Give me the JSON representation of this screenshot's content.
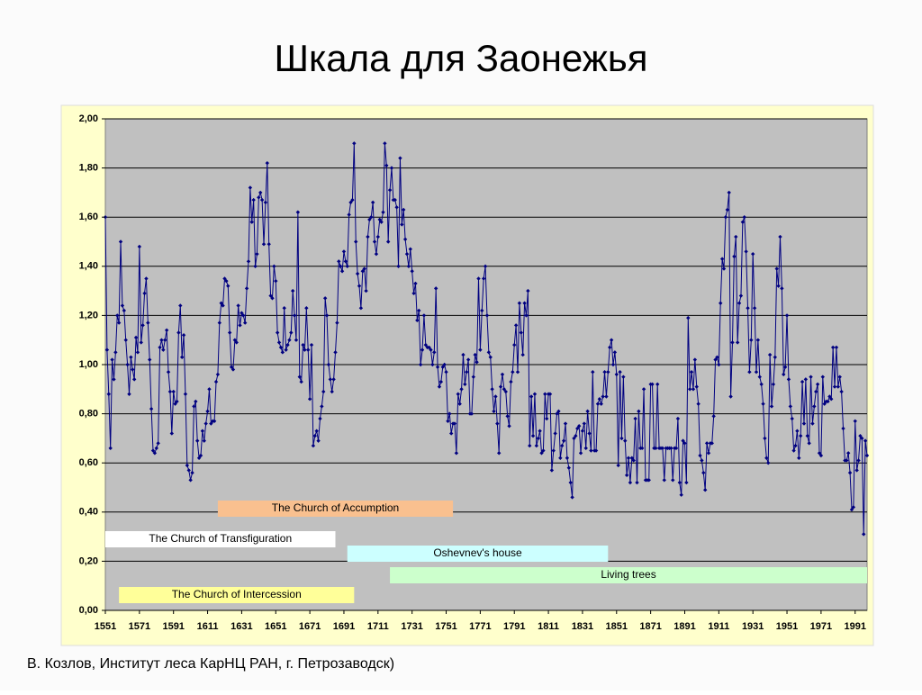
{
  "page_title": "Шкала для Заонежья",
  "footer": "В. Козлов, Институт леса КарНЦ РАН, г. Петрозаводск)",
  "chart_data": {
    "type": "line",
    "color": "#000080",
    "grid": true,
    "xlim": [
      1551,
      1998
    ],
    "ylim": [
      0,
      2
    ],
    "xticks": [
      1551,
      1571,
      1591,
      1611,
      1631,
      1651,
      1671,
      1691,
      1711,
      1731,
      1751,
      1771,
      1791,
      1811,
      1831,
      1851,
      1871,
      1891,
      1911,
      1931,
      1951,
      1971,
      1991
    ],
    "yticks": [
      {
        "value": 0,
        "label": "0,00"
      },
      {
        "value": 0.2,
        "label": "0,20"
      },
      {
        "value": 0.4,
        "label": "0,40"
      },
      {
        "value": 0.6,
        "label": "0,60"
      },
      {
        "value": 0.8,
        "label": "0,80"
      },
      {
        "value": 1,
        "label": "1,00"
      },
      {
        "value": 1.2,
        "label": "1,20"
      },
      {
        "value": 1.4,
        "label": "1,40"
      },
      {
        "value": 1.6,
        "label": "1,60"
      },
      {
        "value": 1.8,
        "label": "1,80"
      },
      {
        "value": 2,
        "label": "2,00"
      }
    ],
    "periods": [
      {
        "label": "The Church of Accumption",
        "start": 1617,
        "end": 1755,
        "color": "#f9c08f"
      },
      {
        "label": "The Church of Transfiguration",
        "start": 1551,
        "end": 1686,
        "color": "#ffffff"
      },
      {
        "label": "Oshevnev's house",
        "start": 1693,
        "end": 1846,
        "color": "#ccffff"
      },
      {
        "label": "Living trees",
        "start": 1718,
        "end": 1998,
        "color": "#ccffcc"
      },
      {
        "label": "The Church of Intercession",
        "start": 1559,
        "end": 1697,
        "color": "#ffff99"
      }
    ],
    "x": [
      1551,
      1552,
      1553,
      1554,
      1555,
      1556,
      1557,
      1558,
      1559,
      1560,
      1561,
      1562,
      1563,
      1564,
      1565,
      1566,
      1567,
      1568,
      1569,
      1570,
      1571,
      1572,
      1573,
      1574,
      1575,
      1576,
      1577,
      1578,
      1579,
      1580,
      1581,
      1582,
      1583,
      1584,
      1585,
      1586,
      1587,
      1588,
      1589,
      1590,
      1591,
      1592,
      1593,
      1594,
      1595,
      1596,
      1597,
      1598,
      1599,
      1600,
      1601,
      1602,
      1603,
      1604,
      1605,
      1606,
      1607,
      1608,
      1609,
      1610,
      1611,
      1612,
      1613,
      1614,
      1615,
      1616,
      1617,
      1618,
      1619,
      1620,
      1621,
      1622,
      1623,
      1624,
      1625,
      1626,
      1627,
      1628,
      1629,
      1630,
      1631,
      1632,
      1633,
      1634,
      1635,
      1636,
      1637,
      1638,
      1639,
      1640,
      1641,
      1642,
      1643,
      1644,
      1645,
      1646,
      1647,
      1648,
      1649,
      1650,
      1651,
      1652,
      1653,
      1654,
      1655,
      1656,
      1657,
      1658,
      1659,
      1660,
      1661,
      1662,
      1663,
      1664,
      1665,
      1666,
      1667,
      1668,
      1669,
      1670,
      1671,
      1672,
      1673,
      1674,
      1675,
      1676,
      1677,
      1678,
      1679,
      1680,
      1681,
      1682,
      1683,
      1684,
      1685,
      1686,
      1687,
      1688,
      1689,
      1690,
      1691,
      1692,
      1693,
      1694,
      1695,
      1696,
      1697,
      1698,
      1699,
      1700,
      1701,
      1702,
      1703,
      1704,
      1705,
      1706,
      1707,
      1708,
      1709,
      1710,
      1711,
      1712,
      1713,
      1714,
      1715,
      1716,
      1717,
      1718,
      1719,
      1720,
      1721,
      1722,
      1723,
      1724,
      1725,
      1726,
      1727,
      1728,
      1729,
      1730,
      1731,
      1732,
      1733,
      1734,
      1735,
      1736,
      1737,
      1738,
      1739,
      1740,
      1741,
      1742,
      1743,
      1744,
      1745,
      1746,
      1747,
      1748,
      1749,
      1750,
      1751,
      1752,
      1753,
      1754,
      1755,
      1756,
      1757,
      1758,
      1759,
      1760,
      1761,
      1762,
      1763,
      1764,
      1765,
      1766,
      1767,
      1768,
      1769,
      1770,
      1771,
      1772,
      1773,
      1774,
      1775,
      1776,
      1777,
      1778,
      1779,
      1780,
      1781,
      1782,
      1783,
      1784,
      1785,
      1786,
      1787,
      1788,
      1789,
      1790,
      1791,
      1792,
      1793,
      1794,
      1795,
      1796,
      1797,
      1798,
      1799,
      1800,
      1801,
      1802,
      1803,
      1804,
      1805,
      1806,
      1807,
      1808,
      1809,
      1810,
      1811,
      1812,
      1813,
      1814,
      1815,
      1816,
      1817,
      1818,
      1819,
      1820,
      1821,
      1822,
      1823,
      1824,
      1825,
      1826,
      1827,
      1828,
      1829,
      1830,
      1831,
      1832,
      1833,
      1834,
      1835,
      1836,
      1837,
      1838,
      1839,
      1840,
      1841,
      1842,
      1843,
      1844,
      1845,
      1846,
      1847,
      1848,
      1849,
      1850,
      1851,
      1852,
      1853,
      1854,
      1855,
      1856,
      1857,
      1858,
      1859,
      1860,
      1861,
      1862,
      1863,
      1864,
      1865,
      1866,
      1867,
      1868,
      1869,
      1870,
      1871,
      1872,
      1873,
      1874,
      1875,
      1876,
      1877,
      1878,
      1879,
      1880,
      1881,
      1882,
      1883,
      1884,
      1885,
      1886,
      1887,
      1888,
      1889,
      1890,
      1891,
      1892,
      1893,
      1894,
      1895,
      1896,
      1897,
      1898,
      1899,
      1900,
      1901,
      1902,
      1903,
      1904,
      1905,
      1906,
      1907,
      1908,
      1909,
      1910,
      1911,
      1912,
      1913,
      1914,
      1915,
      1916,
      1917,
      1918,
      1919,
      1920,
      1921,
      1922,
      1923,
      1924,
      1925,
      1926,
      1927,
      1928,
      1929,
      1930,
      1931,
      1932,
      1933,
      1934,
      1935,
      1936,
      1937,
      1938,
      1939,
      1940,
      1941,
      1942,
      1943,
      1944,
      1945,
      1946,
      1947,
      1948,
      1949,
      1950,
      1951,
      1952,
      1953,
      1954,
      1955,
      1956,
      1957,
      1958,
      1959,
      1960,
      1961,
      1962,
      1963,
      1964,
      1965,
      1966,
      1967,
      1968,
      1969,
      1970,
      1971,
      1972,
      1973,
      1974,
      1975,
      1976,
      1977,
      1978,
      1979,
      1980,
      1981,
      1982,
      1983,
      1984,
      1985,
      1986,
      1987,
      1988,
      1989,
      1990,
      1991,
      1992,
      1993,
      1994,
      1995,
      1996,
      1997,
      1998
    ],
    "values": [
      1.6,
      1.06,
      0.88,
      0.66,
      1.02,
      0.94,
      1.05,
      1.2,
      1.17,
      1.5,
      1.24,
      1.22,
      1.1,
      1.0,
      0.88,
      1.03,
      0.98,
      0.94,
      1.11,
      1.05,
      1.48,
      1.09,
      1.16,
      1.29,
      1.35,
      1.17,
      1.02,
      0.82,
      0.65,
      0.64,
      0.66,
      0.68,
      1.07,
      1.1,
      1.06,
      1.1,
      1.14,
      0.97,
      0.89,
      0.72,
      0.89,
      0.84,
      0.85,
      1.13,
      1.24,
      1.03,
      1.12,
      0.88,
      0.59,
      0.57,
      0.53,
      0.56,
      0.83,
      0.85,
      0.69,
      0.62,
      0.63,
      0.73,
      0.69,
      0.76,
      0.81,
      0.9,
      0.76,
      0.77,
      0.77,
      0.93,
      0.96,
      1.17,
      1.25,
      1.24,
      1.35,
      1.34,
      1.32,
      1.13,
      0.99,
      0.98,
      1.1,
      1.09,
      1.24,
      1.16,
      1.21,
      1.2,
      1.17,
      1.31,
      1.42,
      1.72,
      1.58,
      1.67,
      1.4,
      1.45,
      1.68,
      1.7,
      1.67,
      1.49,
      1.66,
      1.82,
      1.49,
      1.28,
      1.27,
      1.4,
      1.34,
      1.13,
      1.09,
      1.07,
      1.05,
      1.23,
      1.06,
      1.08,
      1.1,
      1.13,
      1.3,
      1.2,
      1.1,
      1.62,
      0.95,
      0.93,
      1.08,
      1.06,
      1.23,
      1.06,
      0.86,
      1.08,
      0.67,
      0.71,
      0.73,
      0.69,
      0.78,
      0.83,
      0.89,
      1.27,
      1.2,
      1.0,
      0.94,
      0.89,
      0.94,
      1.05,
      1.17,
      1.42,
      1.4,
      1.38,
      1.46,
      1.42,
      1.4,
      1.61,
      1.66,
      1.67,
      1.9,
      1.5,
      1.37,
      1.32,
      1.23,
      1.38,
      1.39,
      1.3,
      1.52,
      1.59,
      1.6,
      1.66,
      1.5,
      1.45,
      1.52,
      1.59,
      1.58,
      1.62,
      1.9,
      1.81,
      1.5,
      1.71,
      1.8,
      1.67,
      1.67,
      1.64,
      1.4,
      1.84,
      1.57,
      1.63,
      1.51,
      1.45,
      1.4,
      1.47,
      1.38,
      1.29,
      1.33,
      1.18,
      1.22,
      1.0,
      1.06,
      1.2,
      1.08,
      1.07,
      1.07,
      1.06,
      1.0,
      1.05,
      1.31,
      0.99,
      0.91,
      0.93,
      0.99,
      1.0,
      0.97,
      0.77,
      0.8,
      0.72,
      0.76,
      0.76,
      0.64,
      0.88,
      0.84,
      0.9,
      1.04,
      0.92,
      0.97,
      1.02,
      0.8,
      0.8,
      0.95,
      1.04,
      1.01,
      1.35,
      1.06,
      1.22,
      1.35,
      1.4,
      1.2,
      1.05,
      1.03,
      0.9,
      0.81,
      0.87,
      0.76,
      0.64,
      0.91,
      0.96,
      0.9,
      0.89,
      0.79,
      0.75,
      0.93,
      0.97,
      1.08,
      1.16,
      0.97,
      1.25,
      1.13,
      1.04,
      1.25,
      1.2,
      1.3,
      0.67,
      0.87,
      0.71,
      0.88,
      0.67,
      0.7,
      0.73,
      0.64,
      0.65,
      0.88,
      0.78,
      0.88,
      0.88,
      0.57,
      0.65,
      0.72,
      0.8,
      0.81,
      0.62,
      0.67,
      0.69,
      0.76,
      0.62,
      0.58,
      0.52,
      0.46,
      0.7,
      0.71,
      0.74,
      0.75,
      0.64,
      0.73,
      0.76,
      0.66,
      0.81,
      0.72,
      0.65,
      0.97,
      0.65,
      0.65,
      0.84,
      0.86,
      0.84,
      0.87,
      0.97,
      0.87,
      0.97,
      1.07,
      1.1,
      1.0,
      1.05,
      0.96,
      0.59,
      0.97,
      0.7,
      0.95,
      0.69,
      0.55,
      0.62,
      0.52,
      0.62,
      0.61,
      0.78,
      0.52,
      0.81,
      0.66,
      0.66,
      0.9,
      0.53,
      0.53,
      0.53,
      0.92,
      0.92,
      0.66,
      0.66,
      0.92,
      0.66,
      0.66,
      0.66,
      0.53,
      0.66,
      0.66,
      0.66,
      0.66,
      0.53,
      0.66,
      0.66,
      0.78,
      0.52,
      0.47,
      0.69,
      0.68,
      0.52,
      1.19,
      0.9,
      0.97,
      0.9,
      1.02,
      0.91,
      0.84,
      0.63,
      0.61,
      0.56,
      0.49,
      0.68,
      0.64,
      0.68,
      0.68,
      0.79,
      1.02,
      1.03,
      1.0,
      1.25,
      1.43,
      1.39,
      1.6,
      1.63,
      1.7,
      0.87,
      1.09,
      1.44,
      1.52,
      1.09,
      1.25,
      1.28,
      1.58,
      1.6,
      1.46,
      1.23,
      0.97,
      1.1,
      1.45,
      1.23,
      0.97,
      1.1,
      0.95,
      0.92,
      0.84,
      0.7,
      0.62,
      0.6,
      1.04,
      0.83,
      0.92,
      1.03,
      1.39,
      1.32,
      1.52,
      1.31,
      0.96,
      0.99,
      1.2,
      0.94,
      0.83,
      0.78,
      0.65,
      0.67,
      0.73,
      0.62,
      0.71,
      0.93,
      0.76,
      0.94,
      0.71,
      0.68,
      0.95,
      0.76,
      0.83,
      0.89,
      0.92,
      0.64,
      0.63,
      0.95,
      0.84,
      0.85,
      0.85,
      0.87,
      0.86,
      1.07,
      0.91,
      1.07,
      0.91,
      0.95,
      0.89,
      0.74,
      0.61,
      0.61,
      0.64,
      0.56,
      0.41,
      0.42,
      0.77,
      0.57,
      0.61,
      0.71,
      0.7,
      0.31,
      0.69,
      0.63
    ]
  }
}
